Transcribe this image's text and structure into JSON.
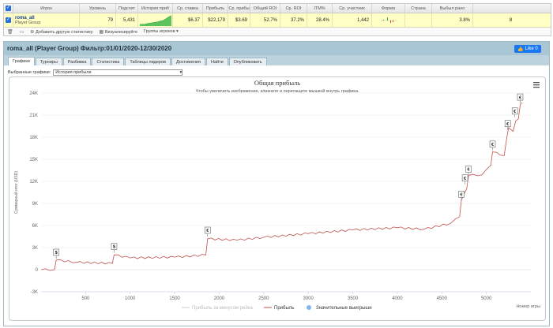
{
  "stats": {
    "headers": [
      "Игрок",
      "Уровень",
      "Подсчет",
      "История приб",
      "Ср. ставка",
      "Прибыль",
      "Ср. прибы",
      "Общий ROI",
      "Ср. ROI",
      "ITM%",
      "Ср. участник",
      "Форма",
      "Страна",
      "Выбыл рано"
    ],
    "row": {
      "player": "roma_all",
      "group": "Player Group",
      "level": "79",
      "count": "5,431",
      "avg_stake": "$6.37",
      "profit": "$22,179",
      "avg_profit": "$3.69",
      "total_roi": "52.7%",
      "avg_roi": "37.2%",
      "itm": "28.4%",
      "avg_entrants": "1,442",
      "early_exit": "3.8%",
      "extra": "8"
    },
    "tools": {
      "add_stats": "Добавить другую статистику",
      "visualize": "Визуализируйте",
      "player_groups": "Группы игроков"
    }
  },
  "panel": {
    "title": "roma_all (Player Group) Фильтр:01/01/2020-12/30/2020",
    "like": "Like 0",
    "tabs": [
      "Графики",
      "Турниры",
      "Разбивка",
      "Статистика",
      "Таблицы лидеров",
      "Достижения",
      "Найти",
      "Опубликовать"
    ],
    "select_label": "Выбранные графики:",
    "select_value": "История прибыли"
  },
  "chart_data": {
    "type": "line",
    "title": "Общая прибыль",
    "subtitle": "Чтобы увеличить изображение, кликните и перетащите мышкой внутрь графика.",
    "xlabel": "Номер игры",
    "ylabel": "Суммарный итог (USD)",
    "xlim": [
      0,
      5500
    ],
    "ylim": [
      -3000,
      24000
    ],
    "x_ticks": [
      500,
      1000,
      1500,
      2000,
      2500,
      3000,
      3500,
      4000,
      4500,
      5000
    ],
    "y_ticks": [
      "-3K",
      "0",
      "3K",
      "6K",
      "9K",
      "12K",
      "15K",
      "18K",
      "21K",
      "24K"
    ],
    "series": [
      {
        "name": "Прибыль",
        "color": "#c0504d",
        "points": [
          [
            0,
            0
          ],
          [
            150,
            0
          ],
          [
            170,
            1300
          ],
          [
            400,
            1000
          ],
          [
            800,
            850
          ],
          [
            820,
            2000
          ],
          [
            1000,
            1600
          ],
          [
            1500,
            1700
          ],
          [
            1850,
            2000
          ],
          [
            1870,
            4200
          ],
          [
            2200,
            4000
          ],
          [
            2500,
            4400
          ],
          [
            3000,
            4900
          ],
          [
            3500,
            5400
          ],
          [
            4000,
            5700
          ],
          [
            4300,
            5500
          ],
          [
            4600,
            6300
          ],
          [
            4700,
            7200
          ],
          [
            4720,
            9500
          ],
          [
            4780,
            11000
          ],
          [
            4800,
            12800
          ],
          [
            4950,
            12900
          ],
          [
            5000,
            13600
          ],
          [
            5050,
            14200
          ],
          [
            5070,
            16000
          ],
          [
            5200,
            15500
          ],
          [
            5230,
            18000
          ],
          [
            5250,
            19300
          ],
          [
            5300,
            18800
          ],
          [
            5330,
            20200
          ],
          [
            5360,
            20500
          ],
          [
            5380,
            22400
          ],
          [
            5400,
            22700
          ]
        ]
      }
    ],
    "markers": [
      [
        170,
        1500
      ],
      [
        820,
        2300
      ],
      [
        1870,
        4500
      ],
      [
        4720,
        9400
      ],
      [
        4760,
        11600
      ],
      [
        4800,
        12800
      ],
      [
        5070,
        16200
      ],
      [
        5240,
        19000
      ],
      [
        5320,
        20700
      ],
      [
        5380,
        22600
      ]
    ],
    "marker_symbol_dollar": "$",
    "marker_symbol_euro": "€",
    "legend": [
      "Прибыль за минусом рейка",
      "Прибыль",
      "Значительные выигрыши"
    ],
    "legend_colors": [
      "#cccccc",
      "#c0504d",
      "#7cb5ec"
    ]
  }
}
